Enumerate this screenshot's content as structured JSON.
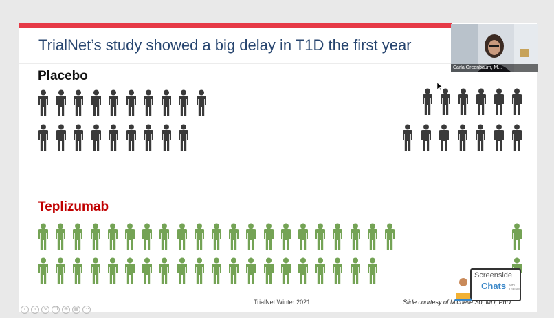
{
  "slide": {
    "title": "TrialNet’s study showed a big delay in T1D the first year",
    "placebo_label": "Placebo",
    "teplizumab_label": "Teplizumab",
    "footer": "TrialNet Winter 2021",
    "credit": "Slide courtesy of Michelle So, MD, PhD"
  },
  "webcam": {
    "name": "Carla Greenbaum, M..."
  },
  "logo": {
    "line1": "Screenside",
    "line2": "Chats",
    "line3": "with TrialNet"
  },
  "colors": {
    "accent_red": "#e63946",
    "title_blue": "#27456f",
    "placebo_figure": "#3a3a3a",
    "teplizumab_figure": "#74a355",
    "teplizumab_label": "#c00000"
  },
  "icons": {
    "person": "person-icon",
    "controls": [
      "prev-icon",
      "next-icon",
      "pen-icon",
      "copy-icon",
      "zoom-icon",
      "grid-icon",
      "more-icon"
    ]
  },
  "figure_counts": {
    "placebo_row1_left": 10,
    "placebo_row2_left": 9,
    "placebo_row1_right": 6,
    "placebo_row2_right": 7,
    "teplizumab_row1_left": 21,
    "teplizumab_row2_left": 20,
    "teplizumab_right": 2
  }
}
